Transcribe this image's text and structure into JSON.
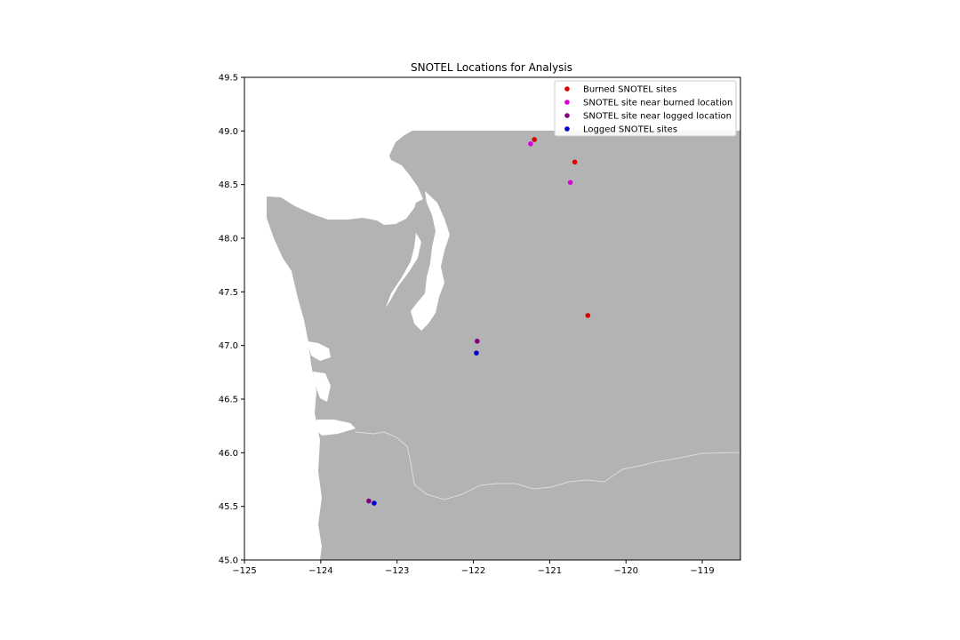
{
  "chart_data": {
    "type": "scatter",
    "title": "SNOTEL Locations for Analysis",
    "xlabel": "",
    "ylabel": "",
    "xlim": [
      -125,
      -118.5
    ],
    "ylim": [
      45.0,
      49.5
    ],
    "x_ticks": [
      -125,
      -124,
      -123,
      -122,
      -121,
      -120,
      -119
    ],
    "x_tick_labels": [
      "−125",
      "−124",
      "−123",
      "−122",
      "−121",
      "−120",
      "−119"
    ],
    "y_ticks": [
      45.0,
      45.5,
      46.0,
      46.5,
      47.0,
      47.5,
      48.0,
      48.5,
      49.0,
      49.5
    ],
    "y_tick_labels": [
      "45.0",
      "45.5",
      "46.0",
      "46.5",
      "47.0",
      "47.5",
      "48.0",
      "48.5",
      "49.0",
      "49.5"
    ],
    "grid": false,
    "legend_position": "top-right",
    "basemap": {
      "land_color": "#b3b3b3",
      "water_color": "#ffffff",
      "border_color": "#dcdcdc"
    },
    "series": [
      {
        "name": "Burned SNOTEL sites",
        "color": "#dd0000",
        "x": [
          -121.2,
          -120.67,
          -120.5
        ],
        "y": [
          48.92,
          48.71,
          47.28
        ]
      },
      {
        "name": "SNOTEL site near burned location",
        "color": "#dd00dd",
        "x": [
          -121.25,
          -120.73
        ],
        "y": [
          48.88,
          48.52
        ]
      },
      {
        "name": "SNOTEL site near logged location",
        "color": "#800080",
        "x": [
          -121.95,
          -123.37
        ],
        "y": [
          47.04,
          45.55
        ]
      },
      {
        "name": "Logged SNOTEL sites",
        "color": "#0000cc",
        "x": [
          -121.96,
          -123.3
        ],
        "y": [
          46.93,
          45.53
        ]
      }
    ]
  }
}
